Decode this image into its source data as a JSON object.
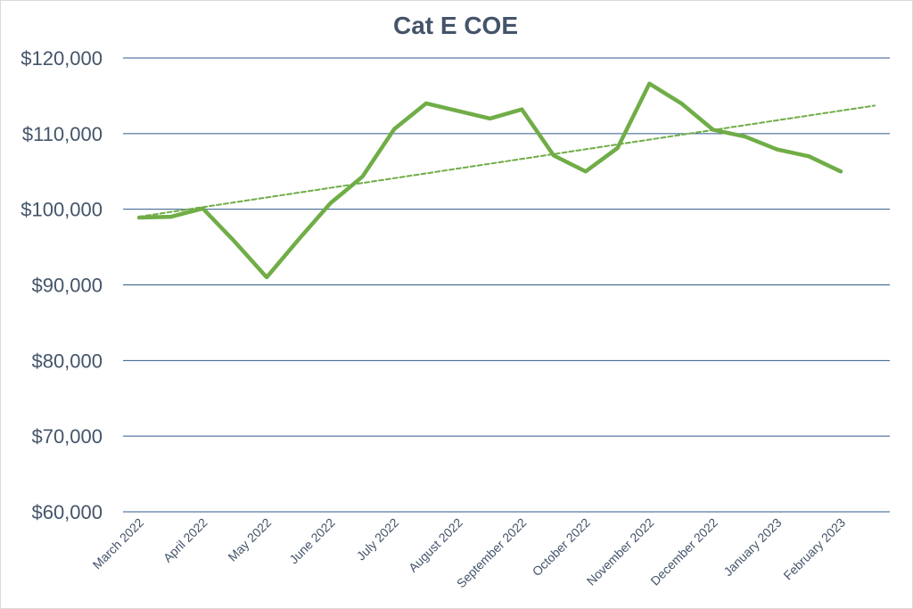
{
  "chart_data": {
    "type": "line",
    "title": "Cat E COE",
    "xlabel": "",
    "ylabel": "",
    "ylim": [
      60000,
      120000
    ],
    "yticks": [
      60000,
      70000,
      80000,
      90000,
      100000,
      110000,
      120000
    ],
    "ytick_labels": [
      "$60,000",
      "$70,000",
      "$80,000",
      "$90,000",
      "$100,000",
      "$110,000",
      "$120,000"
    ],
    "x_tick_labels": [
      "March 2022",
      "April 2022",
      "May 2022",
      "June 2022",
      "July 2022",
      "August 2022",
      "September 2022",
      "October 2022",
      "November 2022",
      "December 2022",
      "January 2023",
      "February 2023"
    ],
    "grid": true,
    "legend": "none",
    "series": [
      {
        "style": "solid",
        "color": "#70ad47",
        "values": [
          98900,
          99000,
          100100,
          95700,
          91000,
          96000,
          100800,
          104300,
          110600,
          114000,
          113000,
          112000,
          113200,
          107100,
          105000,
          108100,
          116600,
          114000,
          110500,
          109600,
          107900,
          107000,
          105000
        ]
      },
      {
        "style": "dashed",
        "color": "#70ad47",
        "trendline": "linear",
        "values": [
          99000,
          113700
        ]
      }
    ]
  }
}
